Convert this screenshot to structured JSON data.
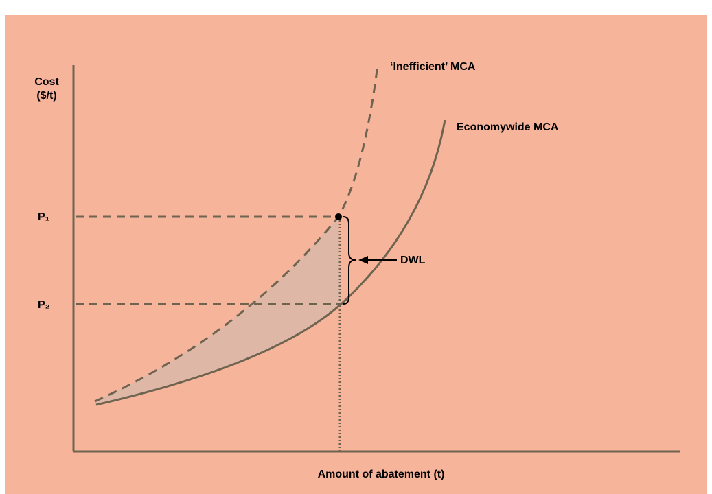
{
  "y_axis_label": [
    "Cost",
    "($/t)"
  ],
  "curves": {
    "inefficient": "‘Inefficient’ MCA",
    "economywide": "Economywide MCA"
  },
  "price_labels": {
    "p1": "P₁",
    "p2": "P₂"
  },
  "dwl_label": "DWL",
  "x_axis_label": "Amount of abatement (t)"
}
